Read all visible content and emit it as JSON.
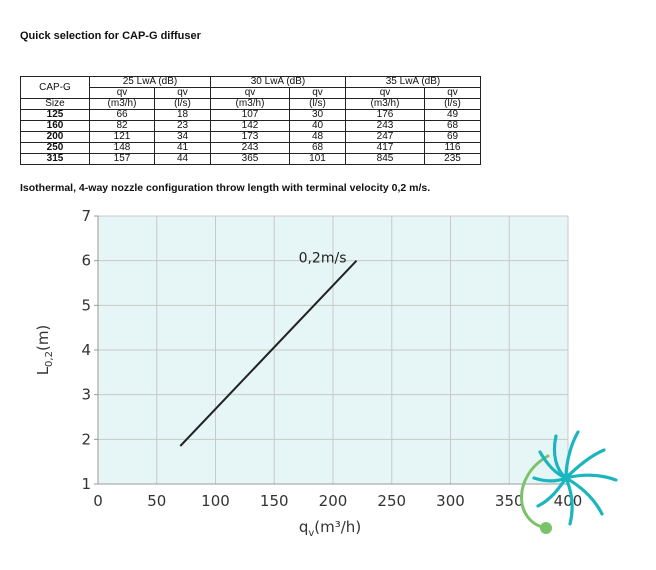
{
  "title": "Quick selection for CAP-G diffuser",
  "table": {
    "corner_top": "CAP-G",
    "corner_bottom": "Size",
    "groups": [
      "25 LwA (dB)",
      "30 LwA (dB)",
      "35 LwA (dB)"
    ],
    "subheaders": [
      [
        "qv",
        "(m3/h)"
      ],
      [
        "qv",
        "(l/s)"
      ],
      [
        "qv",
        "(m3/h)"
      ],
      [
        "qv",
        "(l/s)"
      ],
      [
        "qv",
        "(m3/h)"
      ],
      [
        "qv",
        "(l/s)"
      ]
    ],
    "rows": [
      {
        "size": "125",
        "values": [
          "66",
          "18",
          "107",
          "30",
          "176",
          "49"
        ]
      },
      {
        "size": "160",
        "values": [
          "82",
          "23",
          "142",
          "40",
          "243",
          "68"
        ]
      },
      {
        "size": "200",
        "values": [
          "121",
          "34",
          "173",
          "48",
          "247",
          "69"
        ]
      },
      {
        "size": "250",
        "values": [
          "148",
          "41",
          "243",
          "68",
          "417",
          "116"
        ]
      },
      {
        "size": "315",
        "values": [
          "157",
          "44",
          "365",
          "101",
          "845",
          "235"
        ]
      }
    ]
  },
  "caption": "Isothermal, 4-way nozzle configuration throw length with terminal velocity 0,2 m/s.",
  "chart_data": {
    "type": "line",
    "xlabel": "qv(m³/h)",
    "ylabel": "L0,2(m)",
    "xlim": [
      0,
      400
    ],
    "ylim": [
      1,
      7
    ],
    "xticks": [
      "0",
      "50",
      "100",
      "150",
      "200",
      "250",
      "300",
      "350",
      "400"
    ],
    "yticks": [
      "1",
      "2",
      "3",
      "4",
      "5",
      "6",
      "7"
    ],
    "grid": true,
    "background": "#e6f6f6",
    "series": [
      {
        "name": "0,2m/s",
        "color": "#222222",
        "points": [
          [
            70,
            1.85
          ],
          [
            220,
            6.0
          ]
        ]
      }
    ]
  },
  "logo": {
    "name": "fan-logo-icon",
    "colors": [
      "#1bb5c0",
      "#7cc26a"
    ]
  }
}
